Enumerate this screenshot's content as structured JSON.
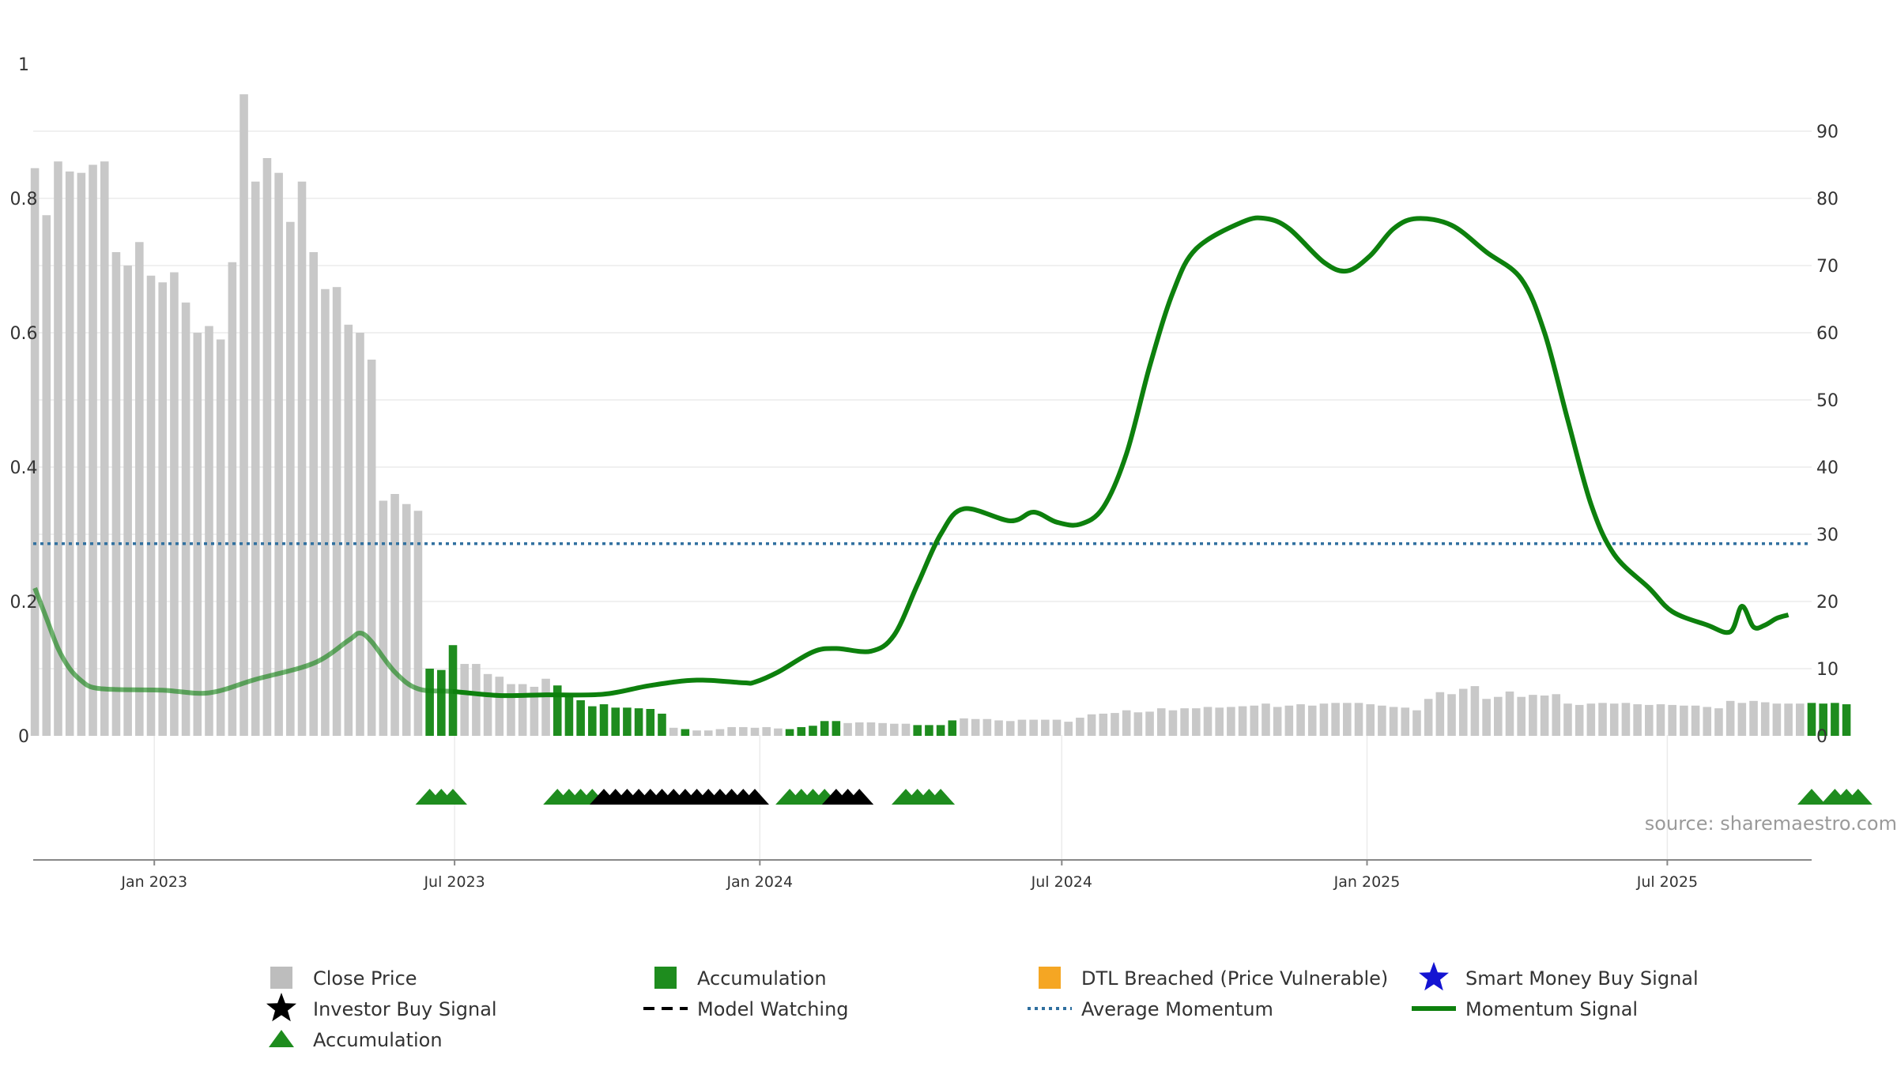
{
  "chart_data": {
    "type": "bar",
    "watermark": "source: sharemaestro.com",
    "colors": {
      "close_price": "#c8c8c8",
      "accumulation": "#1e8c1e",
      "momentum": "#0d800d",
      "average_momentum": "#2f6f9f",
      "investor_buy": "#000000",
      "accumulation_marker": "#1e8c1e",
      "dtl": "#f5a623",
      "smart_money": "#1414d2",
      "grid": "#ebebeb",
      "axis": "#888888"
    },
    "x_axis": {
      "type": "date",
      "range": [
        "2022-10-20",
        "2025-09-26"
      ],
      "ticks": [
        {
          "date": "2023-01-01",
          "label": "Jan 2023"
        },
        {
          "date": "2023-07-01",
          "label": "Jul 2023"
        },
        {
          "date": "2024-01-01",
          "label": "Jan 2024"
        },
        {
          "date": "2024-07-01",
          "label": "Jul 2024"
        },
        {
          "date": "2025-01-01",
          "label": "Jan 2025"
        },
        {
          "date": "2025-07-01",
          "label": "Jul 2025"
        }
      ]
    },
    "y_left": {
      "range": [
        0,
        1
      ],
      "ticks": [
        "0",
        "0.2",
        "0.4",
        "0.6",
        "0.8",
        "1"
      ]
    },
    "y_right": {
      "range": [
        0,
        100
      ],
      "ticks": [
        "0",
        "10",
        "20",
        "30",
        "40",
        "50",
        "60",
        "70",
        "80",
        "90"
      ]
    },
    "grid": true,
    "series": [
      {
        "name": "Close Price",
        "type": "bar",
        "axis": "left",
        "x_start": "2022-10-21",
        "interval": "weekly",
        "values": [
          0.845,
          0.775,
          0.855,
          0.84,
          0.838,
          0.85,
          0.855,
          0.72,
          0.7,
          0.735,
          0.685,
          0.675,
          0.69,
          0.645,
          0.6,
          0.61,
          0.59,
          0.705,
          0.955,
          0.825,
          0.86,
          0.838,
          0.765,
          0.825,
          0.72,
          0.665,
          0.668,
          0.612,
          0.6,
          0.56,
          0.35,
          0.36,
          0.345,
          0.335,
          0.1,
          0.098,
          0.135,
          0.107,
          0.107,
          0.092,
          0.088,
          0.077,
          0.077,
          0.073,
          0.085,
          0.075,
          0.062,
          0.053,
          0.044,
          0.047,
          0.042,
          0.042,
          0.041,
          0.04,
          0.033,
          0.012,
          0.01,
          0.008,
          0.008,
          0.01,
          0.013,
          0.013,
          0.012,
          0.013,
          0.011,
          0.01,
          0.013,
          0.015,
          0.022,
          0.022,
          0.019,
          0.02,
          0.02,
          0.019,
          0.018,
          0.018,
          0.016,
          0.016,
          0.016,
          0.023,
          0.026,
          0.025,
          0.025,
          0.023,
          0.022,
          0.024,
          0.024,
          0.024,
          0.024,
          0.021,
          0.027,
          0.032,
          0.033,
          0.034,
          0.038,
          0.035,
          0.036,
          0.041,
          0.038,
          0.041,
          0.041,
          0.043,
          0.042,
          0.043,
          0.044,
          0.045,
          0.048,
          0.043,
          0.045,
          0.047,
          0.045,
          0.048,
          0.049,
          0.049,
          0.049,
          0.047,
          0.045,
          0.043,
          0.042,
          0.038,
          0.055,
          0.065,
          0.062,
          0.07,
          0.074,
          0.055,
          0.058,
          0.066,
          0.058,
          0.061,
          0.06,
          0.062,
          0.048,
          0.046,
          0.048,
          0.049,
          0.048,
          0.049,
          0.047,
          0.046,
          0.047,
          0.046,
          0.045,
          0.045,
          0.043,
          0.041,
          0.052,
          0.049,
          0.052,
          0.05,
          0.048,
          0.048,
          0.048,
          0.049,
          0.048,
          0.049,
          0.047
        ]
      },
      {
        "name": "Accumulation",
        "type": "bar_highlight",
        "axis": "left",
        "week_ranges": [
          [
            34,
            36
          ],
          [
            45,
            54
          ],
          [
            56,
            56
          ],
          [
            65,
            69
          ],
          [
            76,
            79
          ],
          [
            153,
            157
          ]
        ]
      },
      {
        "name": "Momentum Signal",
        "type": "line",
        "axis": "right",
        "points": [
          [
            "2022-10-21",
            22.0
          ],
          [
            "2022-10-28",
            17.5
          ],
          [
            "2022-11-04",
            13.0
          ],
          [
            "2022-11-11",
            10.0
          ],
          [
            "2022-11-18",
            8.2
          ],
          [
            "2022-11-25",
            7.2
          ],
          [
            "2022-12-09",
            6.9
          ],
          [
            "2023-01-06",
            6.8
          ],
          [
            "2023-02-03",
            6.4
          ],
          [
            "2023-03-03",
            8.4
          ],
          [
            "2023-04-07",
            10.8
          ],
          [
            "2023-04-28",
            14.2
          ],
          [
            "2023-05-05",
            15.3
          ],
          [
            "2023-05-12",
            14.0
          ],
          [
            "2023-05-26",
            9.5
          ],
          [
            "2023-06-09",
            7.0
          ],
          [
            "2023-06-30",
            6.6
          ],
          [
            "2023-07-28",
            6.0
          ],
          [
            "2023-08-25",
            6.1
          ],
          [
            "2023-09-29",
            6.2
          ],
          [
            "2023-10-27",
            7.5
          ],
          [
            "2023-11-24",
            8.3
          ],
          [
            "2023-12-22",
            7.9
          ],
          [
            "2023-12-29",
            8.0
          ],
          [
            "2024-01-12",
            9.5
          ],
          [
            "2024-02-02",
            12.5
          ],
          [
            "2024-02-16",
            13.0
          ],
          [
            "2024-03-08",
            12.6
          ],
          [
            "2024-03-22",
            15.0
          ],
          [
            "2024-04-05",
            22.5
          ],
          [
            "2024-04-19",
            30.0
          ],
          [
            "2024-05-03",
            33.8
          ],
          [
            "2024-05-31",
            32.0
          ],
          [
            "2024-06-14",
            33.3
          ],
          [
            "2024-06-28",
            31.8
          ],
          [
            "2024-07-12",
            31.5
          ],
          [
            "2024-07-26",
            34.0
          ],
          [
            "2024-08-09",
            42.0
          ],
          [
            "2024-08-23",
            55.0
          ],
          [
            "2024-09-06",
            66.0
          ],
          [
            "2024-09-20",
            72.5
          ],
          [
            "2024-10-18",
            76.5
          ],
          [
            "2024-11-01",
            77.0
          ],
          [
            "2024-11-15",
            75.5
          ],
          [
            "2024-12-06",
            70.5
          ],
          [
            "2024-12-20",
            69.2
          ],
          [
            "2025-01-03",
            71.5
          ],
          [
            "2025-01-17",
            75.5
          ],
          [
            "2025-01-31",
            77.0
          ],
          [
            "2025-02-21",
            76.0
          ],
          [
            "2025-03-14",
            72.0
          ],
          [
            "2025-04-04",
            68.0
          ],
          [
            "2025-04-18",
            60.0
          ],
          [
            "2025-05-02",
            47.0
          ],
          [
            "2025-05-16",
            34.5
          ],
          [
            "2025-05-30",
            27.0
          ],
          [
            "2025-06-20",
            22.0
          ],
          [
            "2025-07-04",
            18.5
          ],
          [
            "2025-07-25",
            16.5
          ],
          [
            "2025-08-08",
            15.5
          ],
          [
            "2025-08-15",
            19.3
          ],
          [
            "2025-08-22",
            16.2
          ],
          [
            "2025-08-29",
            16.5
          ],
          [
            "2025-09-05",
            17.5
          ],
          [
            "2025-09-12",
            18.0
          ]
        ]
      },
      {
        "name": "Average Momentum",
        "type": "hline",
        "axis": "right",
        "value": 28.6
      }
    ],
    "markers": {
      "accumulation": {
        "weeks": [
          34,
          35,
          36,
          45,
          46,
          47,
          48,
          65,
          66,
          67,
          68,
          75,
          76,
          77,
          78,
          153,
          155,
          156,
          157
        ]
      },
      "investor_buy_signal": {
        "weeks": [
          49,
          50,
          51,
          52,
          53,
          54,
          55,
          56,
          57,
          58,
          59,
          60,
          61,
          62,
          69,
          70,
          71
        ]
      }
    },
    "legend": {
      "placement": "bottom",
      "items": [
        {
          "label": "Close Price",
          "symbol": "square",
          "color": "#bdbdbd"
        },
        {
          "label": "Accumulation",
          "symbol": "square",
          "color": "#1e8c1e"
        },
        {
          "label": "DTL Breached (Price Vulnerable)",
          "symbol": "square",
          "color": "#f5a623"
        },
        {
          "label": "Smart Money Buy Signal",
          "symbol": "star",
          "color": "#1414d2"
        },
        {
          "label": "Investor Buy Signal",
          "symbol": "star",
          "color": "#000000"
        },
        {
          "label": "Model Watching",
          "symbol": "dashed-line",
          "color": "#000000"
        },
        {
          "label": "Average Momentum",
          "symbol": "dotted-line",
          "color": "#2f6f9f"
        },
        {
          "label": "Momentum Signal",
          "symbol": "line",
          "color": "#0d800d"
        },
        {
          "label": "Accumulation",
          "symbol": "triangle",
          "color": "#1e8c1e"
        }
      ]
    }
  }
}
